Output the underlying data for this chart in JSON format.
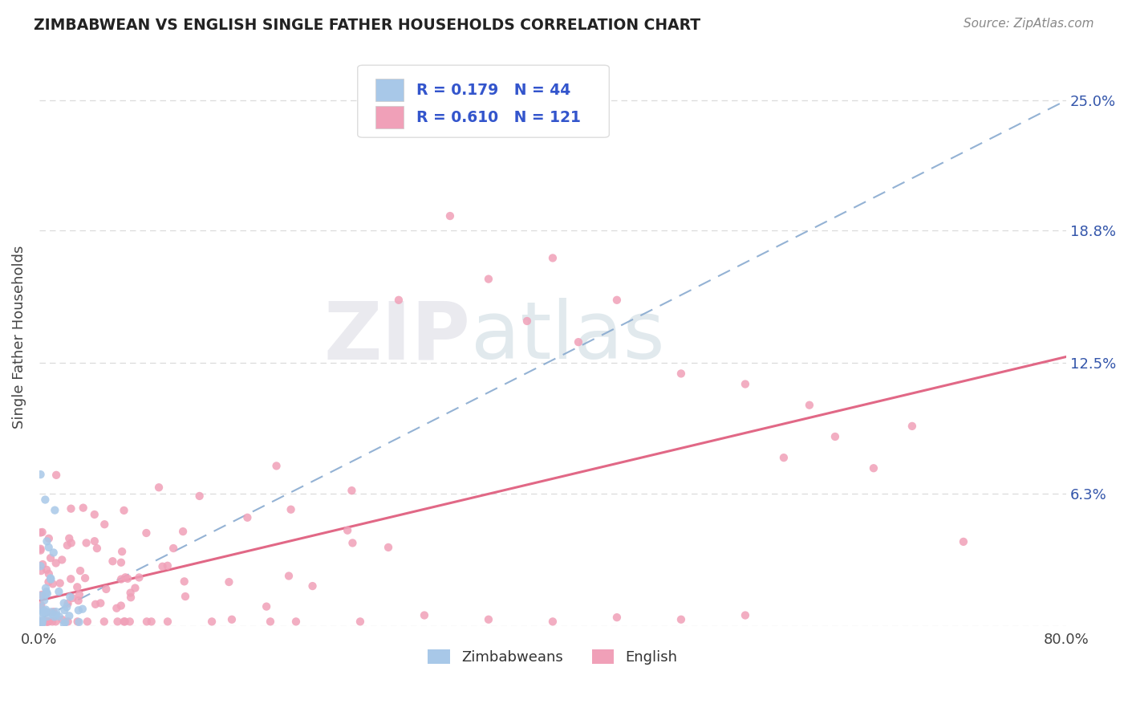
{
  "title": "ZIMBABWEAN VS ENGLISH SINGLE FATHER HOUSEHOLDS CORRELATION CHART",
  "source": "Source: ZipAtlas.com",
  "ylabel": "Single Father Households",
  "xlim": [
    0.0,
    0.8
  ],
  "ylim": [
    0.0,
    0.275
  ],
  "ytick_positions": [
    0.0,
    0.063,
    0.125,
    0.188,
    0.25
  ],
  "ytick_labels": [
    "",
    "6.3%",
    "12.5%",
    "18.8%",
    "25.0%"
  ],
  "xtick_positions": [
    0.0,
    0.1,
    0.2,
    0.3,
    0.4,
    0.5,
    0.6,
    0.7,
    0.8
  ],
  "xtick_labels": [
    "0.0%",
    "",
    "",
    "",
    "",
    "",
    "",
    "",
    "80.0%"
  ],
  "grid_color": "#cccccc",
  "background_color": "#ffffff",
  "watermark_zip": "ZIP",
  "watermark_atlas": "atlas",
  "blue_color": "#a8c8e8",
  "pink_color": "#f0a0b8",
  "blue_line_color": "#88aad0",
  "pink_line_color": "#e06080",
  "label1": "Zimbabweans",
  "label2": "English",
  "legend_text_color": "#3355cc",
  "axis_label_color": "#3355aa",
  "title_color": "#222222",
  "source_color": "#888888",
  "zim_line_start_x": 0.0,
  "zim_line_start_y": 0.003,
  "zim_line_end_x": 0.8,
  "zim_line_end_y": 0.25,
  "eng_line_start_x": 0.0,
  "eng_line_start_y": 0.012,
  "eng_line_end_x": 0.8,
  "eng_line_end_y": 0.128
}
